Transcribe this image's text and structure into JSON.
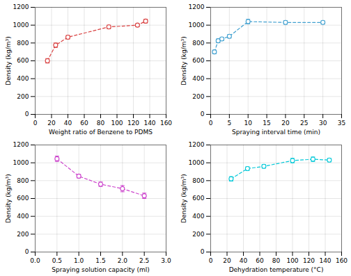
{
  "chart_data": [
    {
      "type": "line",
      "x": [
        15,
        25,
        40,
        90,
        125,
        135
      ],
      "series": [
        {
          "values": [
            600,
            775,
            865,
            980,
            1000,
            1045
          ],
          "yerr": [
            25,
            25,
            20,
            20,
            15,
            20
          ],
          "color": "#d94040",
          "marker": "circle",
          "line_style": "dashed"
        }
      ],
      "xlabel": "Weight ratio of Benzene to PDMS",
      "ylabel": "Density (kg/m³)",
      "xlim": [
        0,
        160
      ],
      "ylim": [
        0,
        1200
      ],
      "xticks": [
        0,
        20,
        40,
        60,
        80,
        100,
        120,
        140,
        160
      ],
      "yticks": [
        0,
        200,
        400,
        600,
        800,
        1000,
        1200
      ],
      "grid": true
    },
    {
      "type": "line",
      "x": [
        1,
        2,
        3,
        5,
        10,
        20,
        30
      ],
      "series": [
        {
          "values": [
            700,
            825,
            845,
            875,
            1040,
            1030,
            1030
          ],
          "yerr": [
            20,
            20,
            18,
            20,
            25,
            20,
            18
          ],
          "color": "#40a0d0",
          "marker": "circle",
          "line_style": "dashed"
        }
      ],
      "xlabel": "Spraying interval time (min)",
      "ylabel": "Density (kg/m³)",
      "xlim": [
        0,
        35
      ],
      "ylim": [
        0,
        1200
      ],
      "xticks": [
        0,
        5,
        10,
        15,
        20,
        25,
        30,
        35
      ],
      "yticks": [
        0,
        200,
        400,
        600,
        800,
        1000,
        1200
      ],
      "grid": true
    },
    {
      "type": "line",
      "x": [
        0.5,
        1.0,
        1.5,
        2.0,
        2.5
      ],
      "series": [
        {
          "values": [
            1045,
            850,
            760,
            710,
            630
          ],
          "yerr": [
            30,
            20,
            25,
            35,
            30
          ],
          "color": "#cc44cc",
          "marker": "circle",
          "line_style": "dashed"
        }
      ],
      "xlabel": "Spraying solution capacity (ml)",
      "ylabel": "Density (kg/m³)",
      "xlim": [
        0.0,
        3.0
      ],
      "ylim": [
        0,
        1200
      ],
      "xticks": [
        {
          "value": 0,
          "label": "0.0"
        },
        0.5,
        {
          "value": 1,
          "label": "1.0"
        },
        1.5,
        {
          "value": 2,
          "label": "2.0"
        },
        2.5,
        {
          "value": 3,
          "label": "3.0"
        }
      ],
      "yticks": [
        0,
        200,
        400,
        600,
        800,
        1000,
        1200
      ],
      "grid": true
    },
    {
      "type": "line",
      "x": [
        25,
        45,
        65,
        100,
        125,
        145
      ],
      "series": [
        {
          "values": [
            820,
            935,
            960,
            1025,
            1040,
            1030
          ],
          "yerr": [
            25,
            20,
            20,
            25,
            25,
            20
          ],
          "color": "#00c8d8",
          "marker": "circle",
          "line_style": "dashed"
        }
      ],
      "xlabel": "Dehydration temperature (°C)",
      "ylabel": "Density (kg/m³)",
      "xlim": [
        0,
        160
      ],
      "ylim": [
        0,
        1200
      ],
      "xticks": [
        0,
        20,
        40,
        60,
        80,
        100,
        120,
        140,
        160
      ],
      "yticks": [
        0,
        200,
        400,
        600,
        800,
        1000,
        1200
      ],
      "grid": true
    }
  ]
}
